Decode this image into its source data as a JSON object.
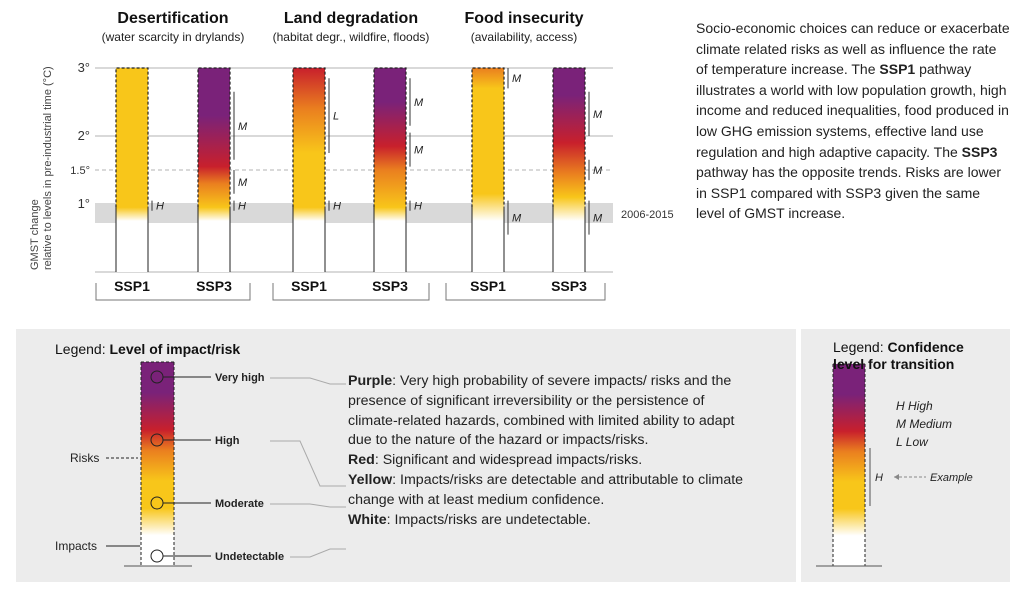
{
  "chart_data": {
    "type": "bar",
    "ylabel": "GMST change relative to levels in pre-industrial time (°C)",
    "y_ticks": [
      "3°",
      "2°",
      "1.5°",
      "1°"
    ],
    "shaded_band_label": "2006-2015",
    "panels": [
      {
        "title": "Desertification",
        "subtitle": "(water scarcity in drylands)",
        "bars": [
          {
            "name": "SSP1",
            "stops": [
              [
                0.75,
                "white"
              ],
              [
                0.95,
                "yellow"
              ],
              [
                3.0,
                "yellow"
              ]
            ],
            "confidence": [
              {
                "label": "H",
                "from": 0.9,
                "to": 1.05
              }
            ]
          },
          {
            "name": "SSP3",
            "stops": [
              [
                0.75,
                "white"
              ],
              [
                0.95,
                "yellow"
              ],
              [
                1.3,
                "orange"
              ],
              [
                1.55,
                "red"
              ],
              [
                2.3,
                "purple"
              ],
              [
                3.0,
                "purple"
              ]
            ],
            "confidence": [
              {
                "label": "H",
                "from": 0.9,
                "to": 1.05
              },
              {
                "label": "M",
                "from": 1.15,
                "to": 1.5
              },
              {
                "label": "M",
                "from": 1.65,
                "to": 2.65
              }
            ]
          }
        ]
      },
      {
        "title": "Land degradation",
        "subtitle": "(habitat degr., wildfire, floods)",
        "bars": [
          {
            "name": "SSP1",
            "stops": [
              [
                0.75,
                "white"
              ],
              [
                0.95,
                "yellow"
              ],
              [
                1.75,
                "yellow"
              ],
              [
                2.4,
                "orange"
              ],
              [
                3.0,
                "red"
              ]
            ],
            "confidence": [
              {
                "label": "H",
                "from": 0.9,
                "to": 1.05
              },
              {
                "label": "L",
                "from": 1.75,
                "to": 2.85
              }
            ]
          },
          {
            "name": "SSP3",
            "stops": [
              [
                0.75,
                "white"
              ],
              [
                0.95,
                "yellow"
              ],
              [
                1.5,
                "orange"
              ],
              [
                1.85,
                "red"
              ],
              [
                2.5,
                "purple"
              ],
              [
                3.0,
                "purple"
              ]
            ],
            "confidence": [
              {
                "label": "H",
                "from": 0.9,
                "to": 1.05
              },
              {
                "label": "M",
                "from": 1.55,
                "to": 2.05
              },
              {
                "label": "M",
                "from": 2.15,
                "to": 2.85
              }
            ]
          }
        ]
      },
      {
        "title": "Food insecurity",
        "subtitle": "(availability, access)",
        "bars": [
          {
            "name": "SSP1",
            "stops": [
              [
                0.75,
                "white"
              ],
              [
                1.15,
                "yellow"
              ],
              [
                2.7,
                "yellow"
              ],
              [
                3.0,
                "orange"
              ]
            ],
            "confidence": [
              {
                "label": "M",
                "from": 0.55,
                "to": 1.05
              },
              {
                "label": "M",
                "from": 2.7,
                "to": 3.0
              }
            ]
          },
          {
            "name": "SSP3",
            "stops": [
              [
                0.75,
                "white"
              ],
              [
                1.1,
                "yellow"
              ],
              [
                1.45,
                "orange"
              ],
              [
                1.9,
                "red"
              ],
              [
                2.6,
                "purple"
              ],
              [
                3.0,
                "purple"
              ]
            ],
            "confidence": [
              {
                "label": "M",
                "from": 0.55,
                "to": 1.05
              },
              {
                "label": "M",
                "from": 1.35,
                "to": 1.65
              },
              {
                "label": "M",
                "from": 2.0,
                "to": 2.65
              }
            ]
          }
        ]
      }
    ]
  },
  "description": {
    "p1": "Socio-economic choices can reduce or exacerbate climate related risks as well as influence the rate of temperature increase. The ",
    "ssp1": "SSP1",
    "p2": " pathway illustrates a world with low population growth, high income and reduced inequalities, food produced in low GHG emission systems, effective land use regulation and high adaptive capacity. The ",
    "ssp3": "SSP3",
    "p3": " pathway has the opposite trends. Risks are lower in SSP1 compared with SSP3 given the same level of GMST increase."
  },
  "legend_risk": {
    "heading_prefix": "Legend: ",
    "heading_bold": "Level of impact/risk",
    "levels": [
      "Very high",
      "High",
      "Moderate",
      "Undetectable"
    ],
    "risks_label": "Risks",
    "impacts_label": "Impacts",
    "items": [
      {
        "term": "Purple",
        "text": ": Very high probability of severe impacts/ risks and the presence of significant irreversibility or the persistence of climate-related hazards, combined with limited ability to adapt due to the nature of the hazard or impacts/risks."
      },
      {
        "term": "Red",
        "text": ": Significant and widespread impacts/risks."
      },
      {
        "term": "Yellow",
        "text": ": Impacts/risks are detectable and attributable to climate change with at least medium confidence."
      },
      {
        "term": "White",
        "text": ": Impacts/risks are undetectable."
      }
    ]
  },
  "legend_confidence": {
    "heading_prefix": "Legend: ",
    "heading_bold": "Confidence level for transition",
    "levels": [
      "H  High",
      "M  Medium",
      "L  Low"
    ],
    "example_mark": "H",
    "example_label": "Example"
  },
  "colors": {
    "white": "#ffffff",
    "yellow": "#f8c61a",
    "orange": "#ea7f1f",
    "red": "#c8202c",
    "purple": "#7a2279",
    "band": "#d9d9d9",
    "panel_bg": "#ececec"
  }
}
